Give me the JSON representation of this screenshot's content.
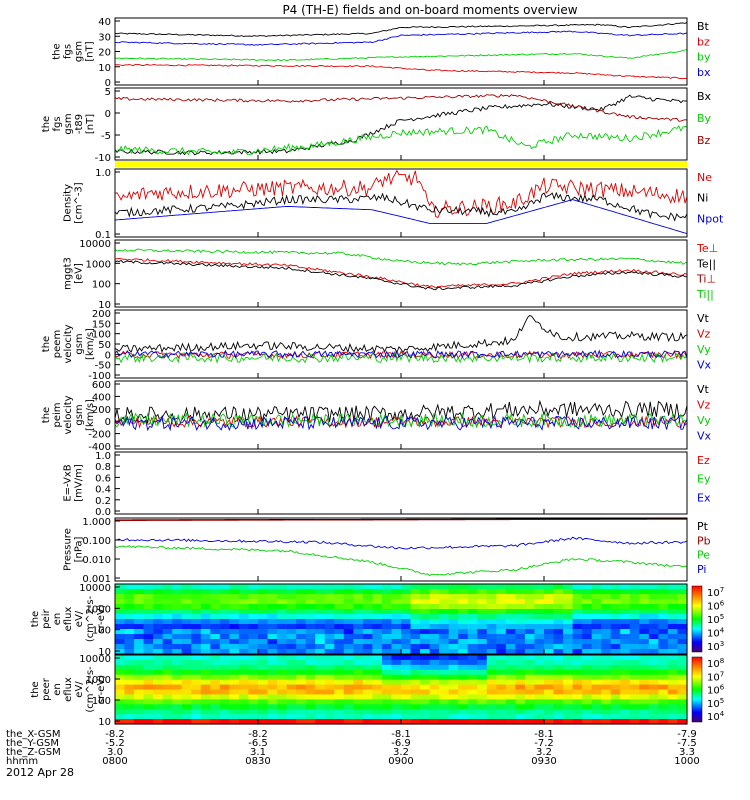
{
  "title": "P4 (TH-E) fields and on-board moments overview",
  "date": "2012 Apr 28",
  "colors": {
    "black": "#000000",
    "red": "#e00000",
    "green": "#00d000",
    "blue": "#0000e0",
    "brown": "#a00000",
    "yellow": "#ffff00"
  },
  "chart_data": [
    {
      "type": "line",
      "id": "fgs",
      "ylabel": [
        "the",
        "fgs",
        "gsm",
        "[nT]"
      ],
      "ylim": [
        -5,
        40
      ],
      "yticks": [
        "40",
        "30",
        "20",
        "10",
        "0"
      ],
      "series": [
        {
          "name": "Bt",
          "color": "black"
        },
        {
          "name": "bz",
          "color": "red"
        },
        {
          "name": "by",
          "color": "green"
        },
        {
          "name": "bx",
          "color": "blue"
        }
      ]
    },
    {
      "type": "line",
      "id": "fgs_dsl",
      "ylabel": [
        "the",
        "fgs",
        "gsm",
        "-t89",
        "[nT]"
      ],
      "ylim": [
        -12,
        6
      ],
      "yticks": [
        "5",
        "0",
        "-5",
        "-10"
      ],
      "series": [
        {
          "name": "Bx",
          "color": "black"
        },
        {
          "name": "By",
          "color": "green"
        },
        {
          "name": "Bz",
          "color": "brown"
        }
      ]
    },
    {
      "type": "line",
      "id": "density",
      "ylabel": [
        "Density",
        "[cm^-3]"
      ],
      "ylim": [
        0.1,
        1.2
      ],
      "yticks": [
        "1.0",
        "0.1"
      ],
      "series": [
        {
          "name": "Ne",
          "color": "red"
        },
        {
          "name": "Ni",
          "color": "black"
        },
        {
          "name": "Npot",
          "color": "blue"
        }
      ]
    },
    {
      "type": "line",
      "id": "temp",
      "ylabel": [
        "mggt3",
        "[eV]"
      ],
      "ylim": [
        10,
        10000
      ],
      "yticks": [
        "10000",
        "1000",
        "100",
        "10"
      ],
      "series": [
        {
          "name": "Te⊥",
          "color": "red"
        },
        {
          "name": "Te||",
          "color": "black"
        },
        {
          "name": "Ti⊥",
          "color": "brown"
        },
        {
          "name": "Ti||",
          "color": "green"
        }
      ]
    },
    {
      "type": "line",
      "id": "velocity_e",
      "ylabel": [
        "the",
        "peem",
        "velocity",
        "gsm",
        "[km/s]"
      ],
      "ylim": [
        -100,
        200
      ],
      "yticks": [
        "200",
        "150",
        "100",
        "50",
        "0",
        "-50",
        "-100"
      ],
      "series": [
        {
          "name": "Vt",
          "color": "black"
        },
        {
          "name": "Vz",
          "color": "red"
        },
        {
          "name": "Vy",
          "color": "green"
        },
        {
          "name": "Vx",
          "color": "blue"
        }
      ]
    },
    {
      "type": "line",
      "id": "velocity_i",
      "ylabel": [
        "the",
        "peim",
        "velocity",
        "gsm",
        "[km/s]"
      ],
      "ylim": [
        -400,
        600
      ],
      "yticks": [
        "600",
        "400",
        "200",
        "0",
        "-200",
        "-400"
      ],
      "series": [
        {
          "name": "Vt",
          "color": "black"
        },
        {
          "name": "Vz",
          "color": "red"
        },
        {
          "name": "Vy",
          "color": "green"
        },
        {
          "name": "Vx",
          "color": "blue"
        }
      ]
    },
    {
      "type": "line",
      "id": "efield",
      "ylabel": [
        "E=-VxB",
        "[mV/m]"
      ],
      "ylim": [
        0,
        1
      ],
      "yticks": [
        "1.0",
        "0.8",
        "0.6",
        "0.4",
        "0.2",
        "0.0"
      ],
      "series": [
        {
          "name": "Ez",
          "color": "red"
        },
        {
          "name": "Ey",
          "color": "green"
        },
        {
          "name": "Ex",
          "color": "blue"
        }
      ]
    },
    {
      "type": "line",
      "id": "pressure",
      "ylabel": [
        "Pressure",
        "[nPa]"
      ],
      "ylim": [
        0.001,
        1
      ],
      "yticks": [
        "1.000",
        "0.100",
        "0.010",
        "0.001"
      ],
      "series": [
        {
          "name": "Pt",
          "color": "black"
        },
        {
          "name": "Pb",
          "color": "brown"
        },
        {
          "name": "Pe",
          "color": "green"
        },
        {
          "name": "Pi",
          "color": "blue"
        }
      ]
    },
    {
      "type": "heatmap",
      "id": "ion_eflux",
      "ylabel": [
        "the",
        "peir",
        "en",
        "eflux",
        "eV/",
        "(cm^2-s-",
        "sr-eV)"
      ],
      "ylim": [
        10,
        20000
      ],
      "yticks": [
        "10000",
        "1000",
        "100",
        "10"
      ],
      "colorbar": [
        "10^7",
        "10^6",
        "10^5",
        "10^4",
        "10^3"
      ]
    },
    {
      "type": "heatmap",
      "id": "elec_eflux",
      "ylabel": [
        "the",
        "peer",
        "en",
        "eflux",
        "eV/",
        "(cm^2-s-",
        "sr-eV)"
      ],
      "ylim": [
        10,
        20000
      ],
      "yticks": [
        "10000",
        "1000",
        "100",
        "10"
      ],
      "colorbar": [
        "10^8",
        "10^7",
        "10^6",
        "10^5",
        "10^4"
      ]
    }
  ],
  "ephemeris": {
    "labels": [
      "the_X-GSM",
      "the_Y-GSM",
      "the_Z-GSM",
      "hhmm"
    ],
    "ticks": [
      {
        "x": "-8.2",
        "y": "-5.2",
        "z": "3.0",
        "t": "0800"
      },
      {
        "x": "-8.2",
        "y": "-6.5",
        "z": "3.1",
        "t": "0830"
      },
      {
        "x": "-8.1",
        "y": "-6.9",
        "z": "3.2",
        "t": "0900"
      },
      {
        "x": "-8.1",
        "y": "-7.2",
        "z": "3.2",
        "t": "0930"
      },
      {
        "x": "-7.9",
        "y": "-7.5",
        "z": "3.3",
        "t": "1000"
      }
    ]
  }
}
